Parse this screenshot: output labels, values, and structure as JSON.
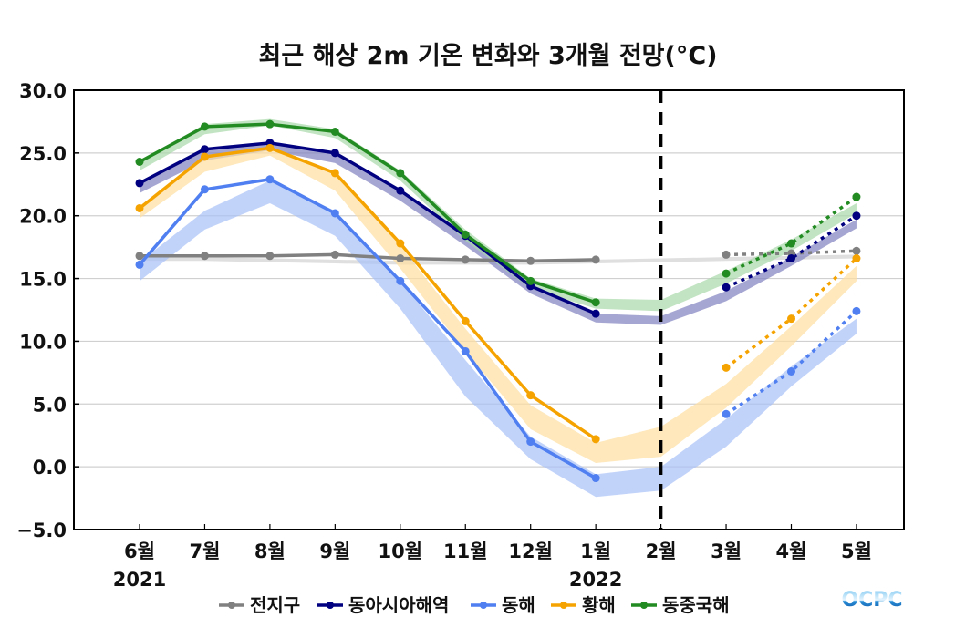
{
  "chart_data": {
    "type": "line",
    "title": "최근 해상 2m 기온 변화와 3개월 전망(°C)",
    "xlabel": "",
    "ylabel": "",
    "ylim": [
      -5.0,
      30.0
    ],
    "yticks": [
      "30.0",
      "25.0",
      "20.0",
      "15.0",
      "10.0",
      "5.0",
      "0.0",
      "-5.0"
    ],
    "ytick_values": [
      30,
      25,
      20,
      15,
      10,
      5,
      0,
      -5
    ],
    "categories": [
      "6월",
      "7월",
      "8월",
      "9월",
      "10월",
      "11월",
      "12월",
      "1월",
      "2월",
      "3월",
      "4월",
      "5월"
    ],
    "year_labels": [
      {
        "label": "2021",
        "category_index": 0
      },
      {
        "label": "2022",
        "category_index": 7
      }
    ],
    "divider_after_category": "2월",
    "grid": true,
    "legend_position": "bottom",
    "observed_range": [
      "6월",
      "1월"
    ],
    "forecast_range": [
      "3월",
      "5월"
    ],
    "series": [
      {
        "name": "전지구",
        "color": "#808080",
        "band_color": "#d9d9d9",
        "observed": [
          16.8,
          16.8,
          16.8,
          16.9,
          16.6,
          16.5,
          16.4,
          16.5,
          null,
          null,
          null,
          null
        ],
        "forecast": [
          null,
          null,
          null,
          null,
          null,
          null,
          null,
          null,
          null,
          16.9,
          17.0,
          17.2
        ],
        "climatology_band": {
          "lower": [
            16.4,
            16.4,
            16.3,
            16.2,
            16.1,
            16.1,
            16.1,
            16.2,
            16.3,
            16.4,
            16.5,
            16.6
          ],
          "upper": [
            16.7,
            16.7,
            16.6,
            16.5,
            16.4,
            16.4,
            16.4,
            16.5,
            16.6,
            16.7,
            16.8,
            16.9
          ]
        }
      },
      {
        "name": "동아시아해역",
        "color": "#000080",
        "band_color": "#8080c0",
        "observed": [
          22.6,
          25.3,
          25.8,
          25.0,
          22.0,
          18.4,
          14.4,
          12.2,
          null,
          null,
          null,
          null
        ],
        "forecast": [
          null,
          null,
          null,
          null,
          null,
          null,
          null,
          null,
          null,
          14.3,
          16.6,
          20.0
        ],
        "climatology_band": {
          "lower": [
            21.8,
            24.4,
            25.2,
            24.2,
            21.2,
            17.6,
            13.8,
            11.5,
            11.3,
            13.2,
            16.0,
            19.0
          ],
          "upper": [
            22.5,
            25.2,
            25.8,
            24.9,
            22.0,
            18.2,
            14.3,
            12.2,
            12.0,
            14.0,
            16.7,
            19.7
          ]
        }
      },
      {
        "name": "동해",
        "color": "#4f7ff0",
        "band_color": "#a8c0f8",
        "observed": [
          16.1,
          22.1,
          22.9,
          20.2,
          14.8,
          9.2,
          2.0,
          -0.9,
          null,
          null,
          null,
          null
        ],
        "forecast": [
          null,
          null,
          null,
          null,
          null,
          null,
          null,
          null,
          null,
          4.2,
          7.6,
          12.4
        ],
        "climatology_band": {
          "lower": [
            14.8,
            18.9,
            21.0,
            18.4,
            12.6,
            5.6,
            0.6,
            -2.4,
            -1.9,
            1.6,
            6.4,
            10.6
          ],
          "upper": [
            16.3,
            20.4,
            22.8,
            20.4,
            14.8,
            8.5,
            2.4,
            -0.6,
            0.0,
            3.8,
            8.0,
            11.8
          ]
        }
      },
      {
        "name": "황해",
        "color": "#f5a300",
        "band_color": "#fddea0",
        "observed": [
          20.6,
          24.7,
          25.4,
          23.4,
          17.8,
          11.6,
          5.7,
          2.2,
          null,
          null,
          null,
          null
        ],
        "forecast": [
          null,
          null,
          null,
          null,
          null,
          null,
          null,
          null,
          null,
          7.9,
          11.8,
          16.6
        ],
        "climatology_band": {
          "lower": [
            19.8,
            23.5,
            24.8,
            22.0,
            15.8,
            9.2,
            3.0,
            0.3,
            0.8,
            4.7,
            9.6,
            14.8
          ],
          "upper": [
            20.6,
            24.6,
            25.5,
            23.3,
            17.6,
            11.0,
            4.9,
            1.9,
            3.2,
            6.6,
            11.2,
            16.0
          ]
        }
      },
      {
        "name": "동중국해",
        "color": "#228b22",
        "band_color": "#a8d8a8",
        "observed": [
          24.3,
          27.1,
          27.3,
          26.7,
          23.4,
          18.5,
          14.8,
          13.1,
          null,
          null,
          null,
          null
        ],
        "forecast": [
          null,
          null,
          null,
          null,
          null,
          null,
          null,
          null,
          null,
          15.4,
          17.8,
          21.5
        ],
        "climatology_band": {
          "lower": [
            23.6,
            26.5,
            27.2,
            26.2,
            22.8,
            18.0,
            14.2,
            12.6,
            12.4,
            14.6,
            17.2,
            20.2
          ],
          "upper": [
            24.3,
            27.3,
            27.7,
            26.9,
            23.6,
            18.9,
            15.0,
            13.4,
            13.3,
            15.6,
            18.1,
            21.0
          ]
        }
      }
    ]
  },
  "logo": {
    "text": "OCPC"
  }
}
